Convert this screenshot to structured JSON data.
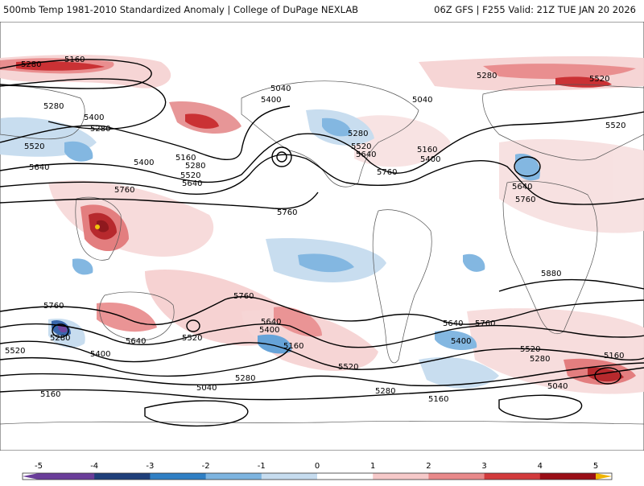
{
  "header": {
    "title": "500mb Temp 1981-2010 Standardized Anomaly | College of DuPage NEXLAB",
    "run_info": "06Z GFS | F255 Valid: 21Z TUE JAN 20 2026"
  },
  "map": {
    "variable": "500mb Temperature Standardized Anomaly",
    "projection": "global-cylindrical",
    "contour_labels": [
      {
        "id": "c5280-nw",
        "text": "5280"
      },
      {
        "id": "c5160-nw",
        "text": "5160"
      },
      {
        "id": "c5280-w1",
        "text": "5280"
      },
      {
        "id": "c5400-w",
        "text": "5400"
      },
      {
        "id": "c5280-w2",
        "text": "5280"
      },
      {
        "id": "c5520-w",
        "text": "5520"
      },
      {
        "id": "c5640-w",
        "text": "5640"
      },
      {
        "id": "c5160-np",
        "text": "5160"
      },
      {
        "id": "c5280-np",
        "text": "5280"
      },
      {
        "id": "c5400-np",
        "text": "5400"
      },
      {
        "id": "c5520-np",
        "text": "5520"
      },
      {
        "id": "c5640-np",
        "text": "5640"
      },
      {
        "id": "c5760-wp",
        "text": "5760"
      },
      {
        "id": "c5040-ak",
        "text": "5040"
      },
      {
        "id": "c5400-ak",
        "text": "5400"
      },
      {
        "id": "c5760-ep",
        "text": "5760"
      },
      {
        "id": "c5280-na",
        "text": "5280"
      },
      {
        "id": "c5520-na",
        "text": "5520"
      },
      {
        "id": "c5640-na",
        "text": "5640"
      },
      {
        "id": "c5760-na",
        "text": "5760"
      },
      {
        "id": "c5040-hb",
        "text": "5040"
      },
      {
        "id": "c5160-at",
        "text": "5160"
      },
      {
        "id": "c5400-at",
        "text": "5400"
      },
      {
        "id": "c5280-eu",
        "text": "5280"
      },
      {
        "id": "c5520-eu",
        "text": "5520"
      },
      {
        "id": "c5520-eu2",
        "text": "5520"
      },
      {
        "id": "c5640-af",
        "text": "5640"
      },
      {
        "id": "c5760-af",
        "text": "5760"
      },
      {
        "id": "c5880-af",
        "text": "5880"
      },
      {
        "id": "c5760-si",
        "text": "5760"
      },
      {
        "id": "c5280-si",
        "text": "5280"
      },
      {
        "id": "c5520-si",
        "text": "5520"
      },
      {
        "id": "c5400-si",
        "text": "5400"
      },
      {
        "id": "c5640-au",
        "text": "5640"
      },
      {
        "id": "c5520-au",
        "text": "5520"
      },
      {
        "id": "c5760-sp",
        "text": "5760"
      },
      {
        "id": "c5640-sp",
        "text": "5640"
      },
      {
        "id": "c5400-sp",
        "text": "5400"
      },
      {
        "id": "c5160-sp",
        "text": "5160"
      },
      {
        "id": "c5280-sp",
        "text": "5280"
      },
      {
        "id": "c5040-sp",
        "text": "5040"
      },
      {
        "id": "c5160-sw",
        "text": "5160"
      },
      {
        "id": "c5520-sa",
        "text": "5520"
      },
      {
        "id": "c5280-sa",
        "text": "5280"
      },
      {
        "id": "c5160-sa",
        "text": "5160"
      },
      {
        "id": "c5640-sa",
        "text": "5640"
      },
      {
        "id": "c5760-sa",
        "text": "5760"
      },
      {
        "id": "c5400-sa",
        "text": "5400"
      },
      {
        "id": "c5520-sio",
        "text": "5520"
      },
      {
        "id": "c5280-sio",
        "text": "5280"
      },
      {
        "id": "c5160-sio",
        "text": "5160"
      },
      {
        "id": "c5040-sio",
        "text": "5040"
      }
    ]
  },
  "colorbar": {
    "ticks": [
      "-5",
      "-4",
      "-3",
      "-2",
      "-1",
      "0",
      "1",
      "2",
      "3",
      "4",
      "5"
    ],
    "colors": [
      "#6a3d9a",
      "#1f3f7a",
      "#2f7fc4",
      "#7db4e0",
      "#c6dcef",
      "#ffffff",
      "#f6c9c9",
      "#e8898a",
      "#d23a3c",
      "#9a0e16",
      "#f0b400"
    ]
  }
}
